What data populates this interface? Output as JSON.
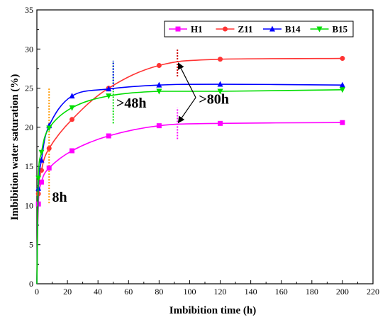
{
  "chart_data": {
    "type": "line",
    "xlabel": "Imbibition time (h)",
    "ylabel": "Imbibition water saturation (%)",
    "xlim": [
      0,
      220
    ],
    "ylim": [
      0,
      35
    ],
    "x_ticks": [
      "0",
      "20",
      "40",
      "60",
      "80",
      "100",
      "120",
      "140",
      "160",
      "180",
      "200",
      "220"
    ],
    "y_ticks": [
      "0",
      "5",
      "10",
      "15",
      "20",
      "25",
      "30",
      "35"
    ],
    "legend_position": "top-right",
    "grid": false,
    "series": [
      {
        "name": "H1",
        "color": "#ff00ff",
        "marker": "square",
        "x": [
          0,
          1,
          3,
          8,
          23,
          47,
          80,
          120,
          200
        ],
        "y": [
          0,
          10.2,
          13.0,
          14.8,
          17.0,
          18.9,
          20.2,
          20.5,
          20.6
        ]
      },
      {
        "name": "Z11",
        "color": "#ff3333",
        "marker": "circle",
        "x": [
          0,
          1,
          3,
          8,
          23,
          47,
          80,
          120,
          200
        ],
        "y": [
          0,
          11.5,
          14.5,
          17.3,
          21.0,
          25.0,
          27.9,
          28.7,
          28.8
        ]
      },
      {
        "name": "B14",
        "color": "#0000ff",
        "marker": "triangle-up",
        "x": [
          0,
          1,
          3,
          8,
          23,
          47,
          80,
          120,
          200
        ],
        "y": [
          0,
          12.2,
          15.8,
          20.2,
          24.0,
          24.9,
          25.4,
          25.5,
          25.4
        ]
      },
      {
        "name": "B15",
        "color": "#00dd00",
        "marker": "triangle-down",
        "x": [
          0,
          1,
          3,
          8,
          23,
          47,
          80,
          120,
          200
        ],
        "y": [
          0,
          13.5,
          16.8,
          19.9,
          22.5,
          24.0,
          24.6,
          24.6,
          24.8
        ]
      }
    ],
    "annotations": [
      {
        "text": "8h",
        "x": 10,
        "y": 10.5
      },
      {
        "text": ">48h",
        "x": 52,
        "y": 22.5
      },
      {
        "text": ">80h",
        "x": 106,
        "y": 23.0
      }
    ],
    "markers_vertical": [
      {
        "x": 8,
        "y_from": 10.3,
        "y_to": 25.0,
        "color": "#ff9900"
      },
      {
        "x": 50,
        "y_from": 20.5,
        "y_to": 28.5,
        "color": "#00dd00"
      },
      {
        "x": 50,
        "y_from": 24.8,
        "y_to": 28.5,
        "color": "#0000ff"
      },
      {
        "x": 92,
        "y_from": 18.5,
        "y_to": 22.5,
        "color": "#ff00ff"
      },
      {
        "x": 92,
        "y_from": 26.5,
        "y_to": 30.0,
        "color": "#cc0000"
      }
    ]
  }
}
